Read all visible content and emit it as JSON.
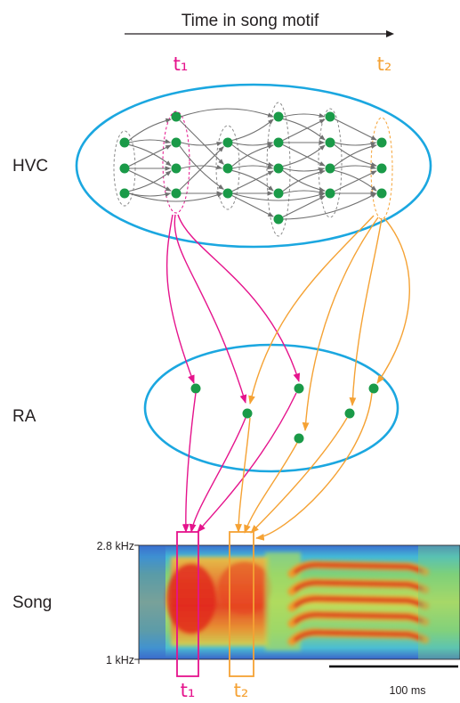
{
  "time_axis": {
    "label": "Time in song motif"
  },
  "regions": {
    "hvc": "HVC",
    "ra": "RA",
    "song": "Song"
  },
  "markers": {
    "t1": {
      "label": "t₁",
      "color": "#e5138c"
    },
    "t2": {
      "label": "t₂",
      "color": "#f5a234"
    }
  },
  "spectrogram": {
    "freq_top": "2.8 kHz",
    "freq_bottom": "1 kHz",
    "scale_bar": "100 ms"
  },
  "colors": {
    "ellipse": "#1ba7e0",
    "neuron": "#1a9a48",
    "hvc_edges": "#707070",
    "group_outline": "#8a8a8a"
  }
}
